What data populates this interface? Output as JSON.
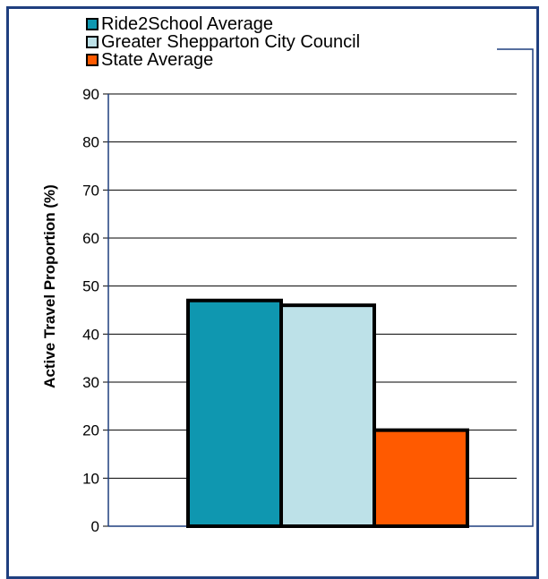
{
  "chart_data": {
    "type": "bar",
    "categories": [
      ""
    ],
    "series": [
      {
        "name": "Ride2School Average",
        "values": [
          47
        ],
        "color": "#0f97b0"
      },
      {
        "name": "Greater Shepparton City Council",
        "values": [
          46
        ],
        "color": "#bde1e8"
      },
      {
        "name": "State Average",
        "values": [
          20
        ],
        "color": "#ff5a00"
      }
    ],
    "ylabel": "Active Travel Proportion (%)",
    "xlabel": "",
    "ylim": [
      0,
      90
    ],
    "yticks": [
      0,
      10,
      20,
      30,
      40,
      50,
      60,
      70,
      80,
      90
    ],
    "grid": true,
    "legend_position": "top-left"
  }
}
